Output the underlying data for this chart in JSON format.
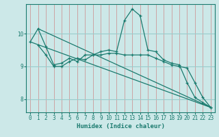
{
  "xlabel": "Humidex (Indice chaleur)",
  "background_color": "#cce8e8",
  "line_color": "#1a7a6e",
  "grid_color_v": "#cc9999",
  "grid_color_h": "#99cccc",
  "xlim": [
    -0.5,
    23.5
  ],
  "ylim": [
    7.6,
    10.9
  ],
  "yticks": [
    8,
    9,
    10
  ],
  "xticks": [
    0,
    1,
    2,
    3,
    4,
    5,
    6,
    7,
    8,
    9,
    10,
    11,
    12,
    13,
    14,
    15,
    16,
    17,
    18,
    19,
    20,
    21,
    22,
    23
  ],
  "line1_x": [
    0,
    1,
    2,
    3,
    4,
    5,
    6,
    7,
    8,
    9,
    10,
    11,
    12,
    13,
    14,
    15,
    16,
    17,
    18,
    19,
    20,
    21,
    22,
    23
  ],
  "line1_y": [
    9.75,
    10.15,
    9.6,
    9.05,
    9.1,
    9.25,
    9.15,
    9.35,
    9.35,
    9.45,
    9.5,
    9.45,
    10.4,
    10.75,
    10.55,
    9.5,
    9.45,
    9.2,
    9.1,
    9.05,
    8.5,
    8.05,
    7.9,
    7.75
  ],
  "line2_x": [
    1,
    2,
    3,
    4,
    5,
    6,
    7,
    8,
    9,
    10,
    11,
    12,
    13,
    14,
    15,
    16,
    17,
    18,
    19,
    20,
    21,
    22,
    23
  ],
  "line2_y": [
    9.65,
    9.35,
    9.0,
    9.0,
    9.15,
    9.25,
    9.2,
    9.35,
    9.35,
    9.4,
    9.4,
    9.35,
    9.35,
    9.35,
    9.35,
    9.25,
    9.15,
    9.05,
    9.0,
    8.95,
    8.5,
    8.05,
    7.75
  ],
  "line3_x": [
    0,
    23
  ],
  "line3_y": [
    9.75,
    7.75
  ],
  "line4_x": [
    1,
    23
  ],
  "line4_y": [
    10.15,
    7.75
  ]
}
